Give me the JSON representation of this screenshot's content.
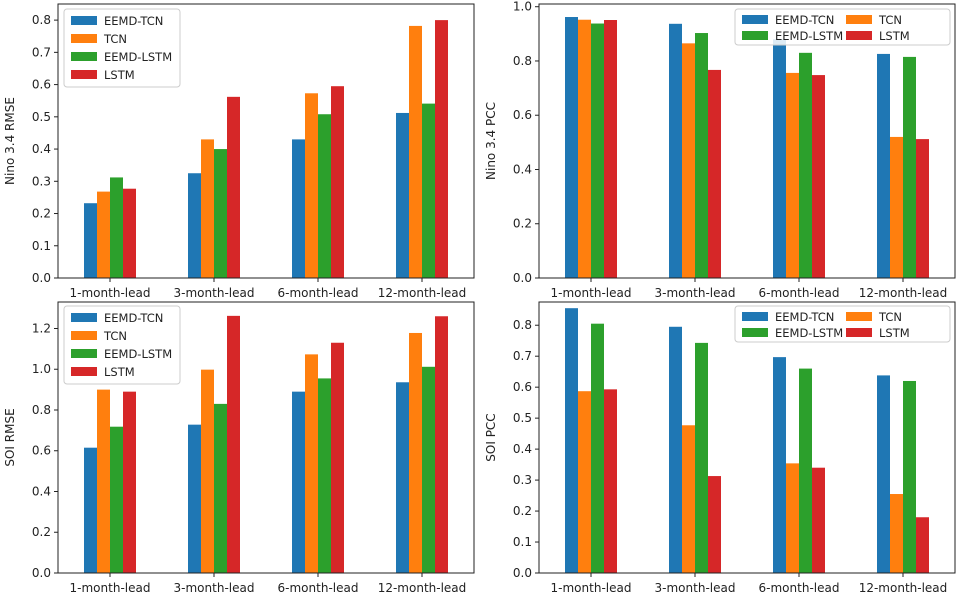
{
  "colors": {
    "EEMD-TCN": "#1f77b4",
    "TCN": "#ff7f0e",
    "EEMD-LSTM": "#2ca02c",
    "LSTM": "#d62728"
  },
  "chart_data": [
    {
      "type": "bar",
      "title": "",
      "xlabel": "",
      "ylabel": "Nino 3.4 RMSE",
      "ylim": [
        0,
        0.85
      ],
      "yticks": [
        0.0,
        0.1,
        0.2,
        0.3,
        0.4,
        0.5,
        0.6,
        0.7,
        0.8
      ],
      "ytick_labels": [
        "0.0",
        "0.1",
        "0.2",
        "0.3",
        "0.4",
        "0.5",
        "0.6",
        "0.7",
        "0.8"
      ],
      "categories": [
        "1-month-lead",
        "3-month-lead",
        "6-month-lead",
        "12-month-lead"
      ],
      "series": [
        {
          "name": "EEMD-TCN",
          "values": [
            0.232,
            0.325,
            0.43,
            0.512
          ]
        },
        {
          "name": "TCN",
          "values": [
            0.268,
            0.43,
            0.573,
            0.782
          ]
        },
        {
          "name": "EEMD-LSTM",
          "values": [
            0.312,
            0.4,
            0.508,
            0.541
          ]
        },
        {
          "name": "LSTM",
          "values": [
            0.277,
            0.562,
            0.595,
            0.8
          ]
        }
      ],
      "legend": {
        "placement": "upper-left",
        "columns": 1
      }
    },
    {
      "type": "bar",
      "title": "",
      "xlabel": "",
      "ylabel": "Nino 3.4 PCC",
      "ylim": [
        0,
        1.01
      ],
      "yticks": [
        0.0,
        0.2,
        0.4,
        0.6,
        0.8,
        1.0
      ],
      "ytick_labels": [
        "0.0",
        "0.2",
        "0.4",
        "0.6",
        "0.8",
        "1.0"
      ],
      "categories": [
        "1-month-lead",
        "3-month-lead",
        "6-month-lead",
        "12-month-lead"
      ],
      "series": [
        {
          "name": "EEMD-TCN",
          "values": [
            0.962,
            0.937,
            0.88,
            0.826
          ]
        },
        {
          "name": "TCN",
          "values": [
            0.952,
            0.865,
            0.756,
            0.52
          ]
        },
        {
          "name": "EEMD-LSTM",
          "values": [
            0.938,
            0.903,
            0.83,
            0.815
          ]
        },
        {
          "name": "LSTM",
          "values": [
            0.951,
            0.767,
            0.748,
            0.512
          ]
        }
      ],
      "legend": {
        "placement": "upper-right",
        "columns": 2
      }
    },
    {
      "type": "bar",
      "title": "",
      "xlabel": "",
      "ylabel": "SOI RMSE",
      "ylim": [
        0,
        1.33
      ],
      "yticks": [
        0.0,
        0.2,
        0.4,
        0.6,
        0.8,
        1.0,
        1.2
      ],
      "ytick_labels": [
        "0.0",
        "0.2",
        "0.4",
        "0.6",
        "0.8",
        "1.0",
        "1.2"
      ],
      "categories": [
        "1-month-lead",
        "3-month-lead",
        "6-month-lead",
        "12-month-lead"
      ],
      "series": [
        {
          "name": "EEMD-TCN",
          "values": [
            0.615,
            0.728,
            0.89,
            0.936
          ]
        },
        {
          "name": "TCN",
          "values": [
            0.9,
            0.998,
            1.073,
            1.178
          ]
        },
        {
          "name": "EEMD-LSTM",
          "values": [
            0.718,
            0.83,
            0.955,
            1.012
          ]
        },
        {
          "name": "LSTM",
          "values": [
            0.89,
            1.262,
            1.13,
            1.26
          ]
        }
      ],
      "legend": {
        "placement": "upper-left",
        "columns": 1
      }
    },
    {
      "type": "bar",
      "title": "",
      "xlabel": "",
      "ylabel": "SOI PCC",
      "ylim": [
        0,
        0.875
      ],
      "yticks": [
        0.0,
        0.1,
        0.2,
        0.3,
        0.4,
        0.5,
        0.6,
        0.7,
        0.8
      ],
      "ytick_labels": [
        "0.0",
        "0.1",
        "0.2",
        "0.3",
        "0.4",
        "0.5",
        "0.6",
        "0.7",
        "0.8"
      ],
      "categories": [
        "1-month-lead",
        "3-month-lead",
        "6-month-lead",
        "12-month-lead"
      ],
      "series": [
        {
          "name": "EEMD-TCN",
          "values": [
            0.855,
            0.795,
            0.697,
            0.638
          ]
        },
        {
          "name": "TCN",
          "values": [
            0.587,
            0.477,
            0.354,
            0.255
          ]
        },
        {
          "name": "EEMD-LSTM",
          "values": [
            0.805,
            0.743,
            0.66,
            0.62
          ]
        },
        {
          "name": "LSTM",
          "values": [
            0.593,
            0.313,
            0.34,
            0.18
          ]
        }
      ],
      "legend": {
        "placement": "upper-right",
        "columns": 2
      }
    }
  ]
}
